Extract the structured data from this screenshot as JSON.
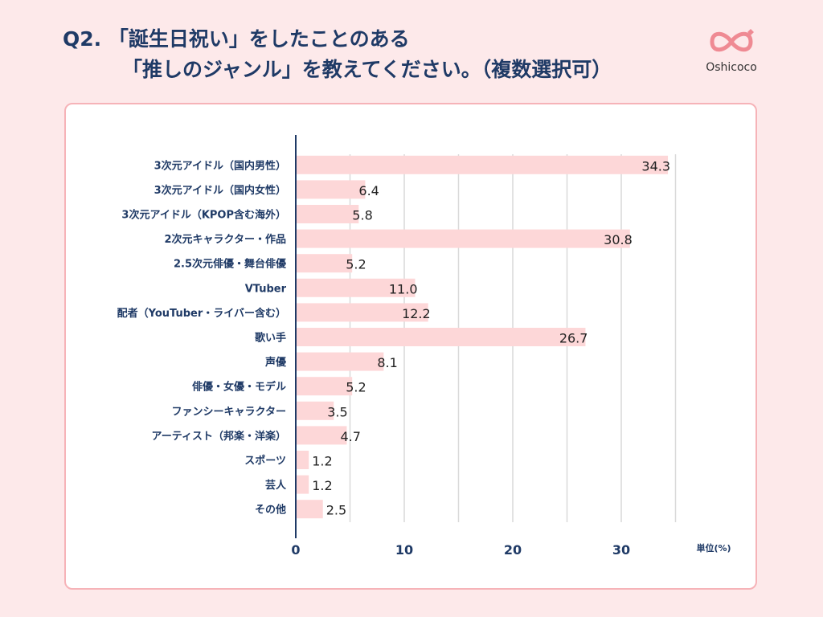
{
  "title": {
    "line1": "Q2. 「誕生日祝い」をしたことのある",
    "line2": "「推しのジャンル」を教えてください。（複数選択可）"
  },
  "logo": {
    "text": "Oshicoco",
    "icon": "infinity-heart-icon",
    "color": "#ef8a93"
  },
  "colors": {
    "bar": "#fdd7d8",
    "axis": "#1f3a66",
    "grid": "#d9d9d9"
  },
  "unit": "単位(%)",
  "chart_data": {
    "type": "bar",
    "orientation": "horizontal",
    "categories": [
      "3次元アイドル（国内男性）",
      "3次元アイドル（国内女性）",
      "3次元アイドル（KPOP含む海外）",
      "2次元キャラクター・作品",
      "2.5次元俳優・舞台俳優",
      "VTuber",
      "配者（YouTuber・ライバー含む）",
      "歌い手",
      "声優",
      "俳優・女優・モデル",
      "ファンシーキャラクター",
      "アーティスト（邦楽・洋楽）",
      "スポーツ",
      "芸人",
      "その他"
    ],
    "values": [
      34.3,
      6.4,
      5.8,
      30.8,
      5.2,
      11.0,
      12.2,
      26.7,
      8.1,
      5.2,
      3.5,
      4.7,
      1.2,
      1.2,
      2.5
    ],
    "value_labels": [
      "34.3",
      "6.4",
      "5.8",
      "30.8",
      "5.2",
      "11.0",
      "12.2",
      "26.7",
      "8.1",
      "5.2",
      "3.5",
      "4.7",
      "1.2",
      "1.2",
      "2.5"
    ],
    "xticks": [
      0,
      10,
      20,
      30
    ],
    "xtick_labels": [
      "0",
      "10",
      "20",
      "30"
    ],
    "xlim": [
      0,
      35
    ],
    "grid": true
  }
}
